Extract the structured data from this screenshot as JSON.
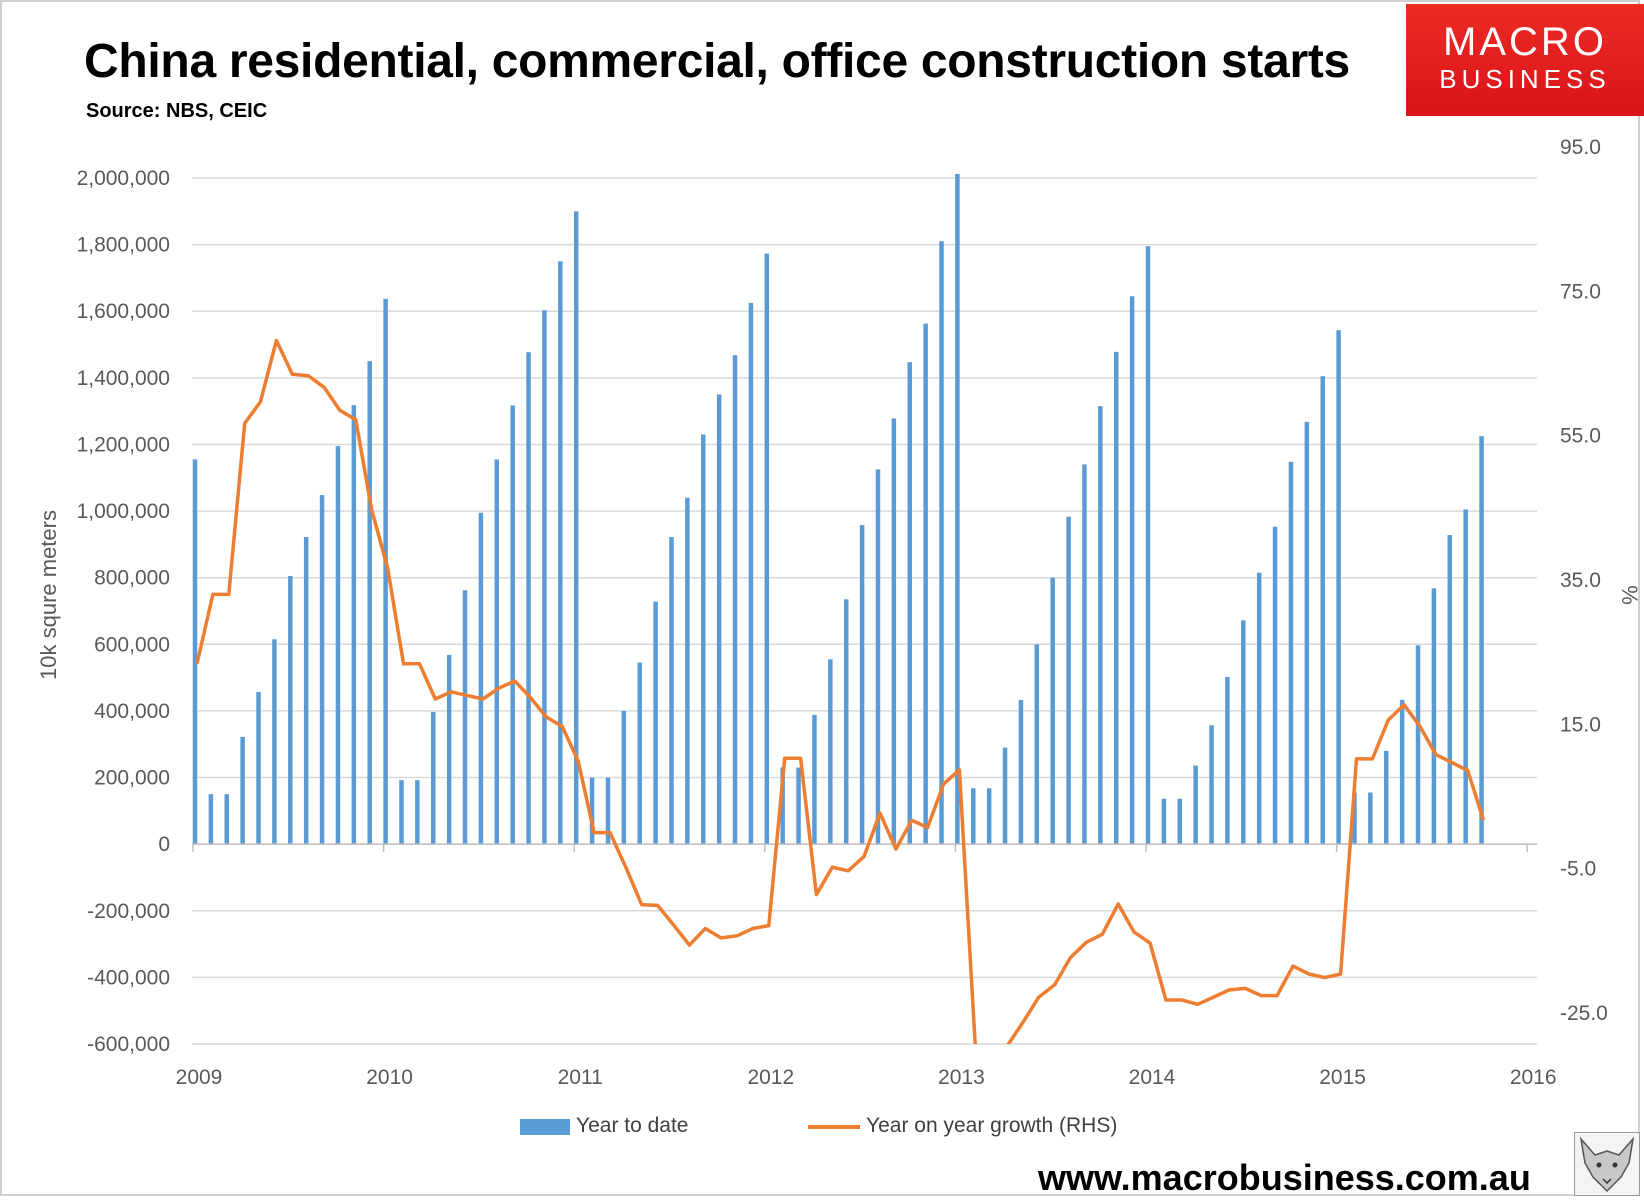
{
  "title": "China residential, commercial, office construction starts",
  "source": "Source: NBS, CEIC",
  "logo": {
    "line1": "MACRO",
    "line2": "BUSINESS"
  },
  "website": "www.macrobusiness.com.au",
  "colors": {
    "bars": "#5b9bd5",
    "line": "#ed7d31",
    "grid": "#d9d9d9",
    "axis_text": "#595959",
    "logo_red": "#e31e24"
  },
  "chart_data": {
    "type": "bar+line",
    "title": "China residential, commercial, office construction starts",
    "xlabel": "",
    "ylabel": "10k squre meters",
    "y2label": "%",
    "ylim": [
      -600000,
      2000000
    ],
    "y2lim": [
      -25,
      95
    ],
    "yticks": [
      "2,000,000",
      "1,800,000",
      "1,600,000",
      "1,400,000",
      "1,200,000",
      "1,000,000",
      "800,000",
      "600,000",
      "400,000",
      "200,000",
      "0",
      "-200,000",
      "-400,000",
      "-600,000"
    ],
    "yticks_values": [
      2000000,
      1800000,
      1600000,
      1400000,
      1200000,
      1000000,
      800000,
      600000,
      400000,
      200000,
      0,
      -200000,
      -400000,
      -600000
    ],
    "y2ticks": [
      "95.0",
      "75.0",
      "55.0",
      "35.0",
      "15.0",
      "-5.0",
      "-25.0"
    ],
    "y2ticks_values": [
      95,
      75,
      55,
      35,
      15,
      -5,
      -25
    ],
    "xticks": [
      "2009",
      "2010",
      "2011",
      "2012",
      "2013",
      "2014",
      "2016"
    ],
    "xticks_extra": [
      "2015"
    ],
    "x_start": "2009-01",
    "legend": {
      "position": "bottom",
      "items": [
        "Year to date",
        "Year on year growth (RHS)"
      ]
    },
    "grid": true,
    "series": [
      {
        "name": "Year to date",
        "type": "bar",
        "values": [
          1155000,
          150000,
          150000,
          322000,
          457000,
          615000,
          805000,
          922000,
          1048000,
          1195000,
          1318000,
          1450000,
          1637000,
          192000,
          192000,
          397000,
          568000,
          762000,
          995000,
          1155000,
          1317000,
          1477000,
          1603000,
          1750000,
          1900000,
          200000,
          200000,
          400000,
          545000,
          728000,
          922000,
          1040000,
          1230000,
          1350000,
          1468000,
          1625000,
          1773000,
          230000,
          230000,
          388000,
          555000,
          735000,
          958000,
          1125000,
          1278000,
          1447000,
          1563000,
          1810000,
          2012000,
          168000,
          168000,
          290000,
          433000,
          600000,
          800000,
          983000,
          1140000,
          1315000,
          1478000,
          1645000,
          1795000,
          136000,
          136000,
          236000,
          357000,
          502000,
          672000,
          815000,
          953000,
          1148000,
          1268000,
          1405000,
          1543000,
          155000,
          155000,
          280000,
          433000,
          597000,
          768000,
          928000,
          1005000,
          1225000
        ]
      },
      {
        "name": "Year on year growth (RHS)",
        "type": "line",
        "axis": "right",
        "values": [
          27.7,
          37.3,
          37.3,
          61.0,
          64.0,
          72.5,
          67.8,
          67.6,
          66.0,
          62.8,
          61.5,
          49.0,
          41.0,
          27.7,
          27.7,
          22.8,
          23.8,
          23.3,
          22.8,
          24.3,
          25.3,
          23.0,
          20.3,
          19.0,
          14.2,
          4.3,
          4.3,
          -0.5,
          -5.7,
          -5.8,
          -8.5,
          -11.3,
          -9.0,
          -10.3,
          -10.0,
          -9.0,
          -8.6,
          14.6,
          14.6,
          -4.3,
          -0.5,
          -1.0,
          1.0,
          7.0,
          2.0,
          6.0,
          5.0,
          11.0,
          13.0,
          -25.3,
          -35.5,
          -25.3,
          -22.0,
          -18.5,
          -16.8,
          -13.0,
          -10.9,
          -9.8,
          -5.6,
          -9.5,
          -11.0,
          -18.9,
          -18.9,
          -19.5,
          -18.5,
          -17.5,
          -17.3,
          -18.3,
          -18.3,
          -14.2,
          -15.3,
          -15.8,
          -15.3,
          14.5,
          14.5,
          19.9,
          22.0,
          19.0,
          15.1,
          14.0,
          12.9,
          6.0
        ]
      }
    ]
  }
}
